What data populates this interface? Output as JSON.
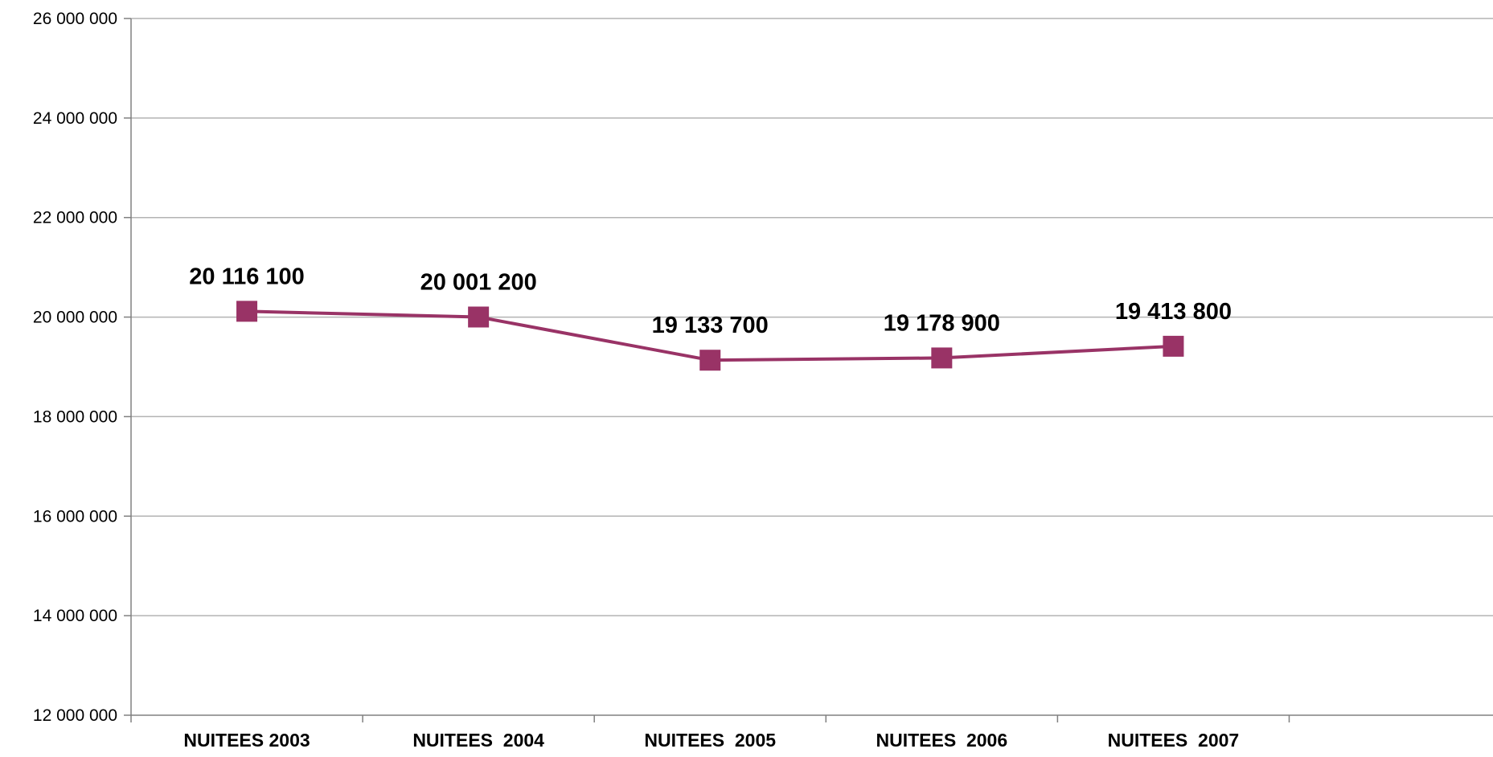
{
  "chart_data": {
    "type": "line",
    "title": "",
    "xlabel": "",
    "ylabel": "",
    "categories": [
      "NUITEES 2003",
      "NUITEES  2004",
      "NUITEES  2005",
      "NUITEES  2006",
      "NUITEES  2007"
    ],
    "series": [
      {
        "values": [
          20116100,
          20001200,
          19133700,
          19178900,
          19413800
        ],
        "color": "#993366",
        "marker": "square"
      }
    ],
    "data_labels": [
      "20 116 100",
      "20 001 200",
      "19 133 700",
      "19 178 900",
      "19 413 800"
    ],
    "ylim": [
      12000000,
      26000000
    ],
    "yticks": [
      12000000,
      14000000,
      16000000,
      18000000,
      20000000,
      22000000,
      24000000,
      26000000
    ],
    "ytick_labels": [
      "12 000 000",
      "14 000 000",
      "16 000 000",
      "18 000 000",
      "20 000 000",
      "22 000 000",
      "24 000 000",
      "26 000 000"
    ],
    "grid": true,
    "legend": "none",
    "colors": {
      "line": "#993366",
      "grid": "#b3b3b3",
      "axis": "#808080",
      "text": "#000000"
    }
  }
}
